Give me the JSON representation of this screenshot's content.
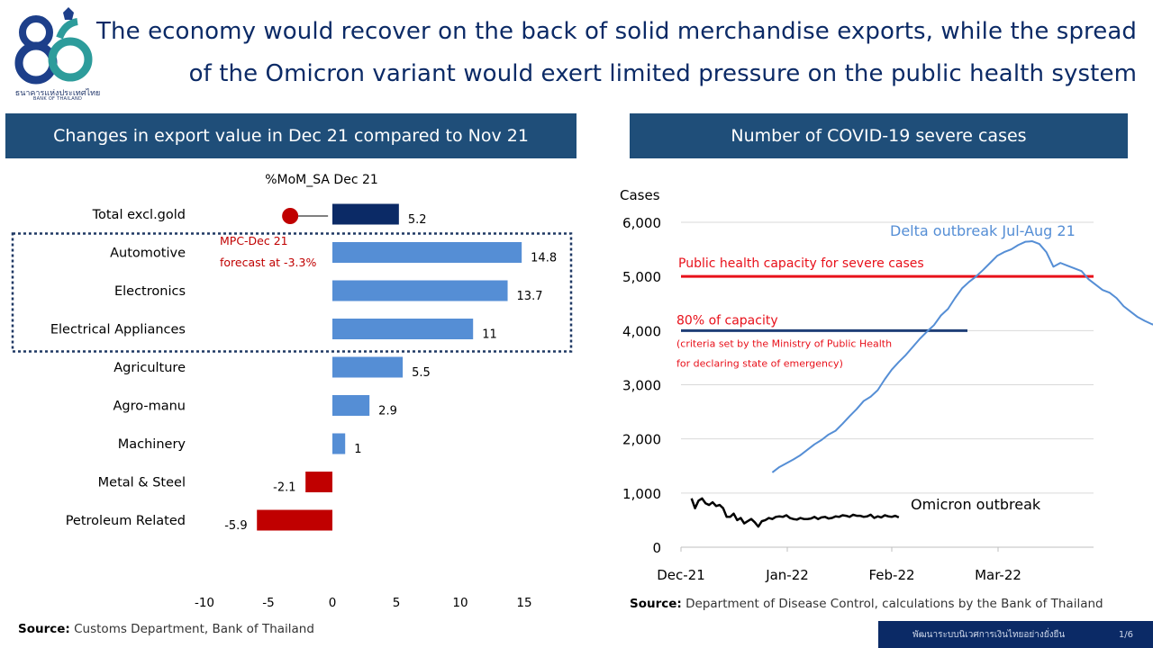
{
  "logo": {
    "thai_text": "ธนาคารแห่งประเทศไทย",
    "english_text": "BANK OF THAILAND"
  },
  "title": {
    "line1": "The economy would recover on the back of solid merchandise exports, while the spread",
    "line2": "of the Omicron variant would exert limited pressure on the public health system"
  },
  "left_panel": {
    "header": "Changes in export value in Dec 21 compared to Nov 21",
    "source_label": "Source:",
    "source_text": "Customs Department, Bank of Thailand"
  },
  "right_panel": {
    "header": "Number of COVID-19 severe cases",
    "source_label": "Source:",
    "source_text": "Department of Disease Control, calculations by the Bank of Thailand"
  },
  "footer": {
    "text": "พัฒนาระบบนิเวศการเงินไทยอย่างยั่งยืน",
    "page": "1/6"
  },
  "colors": {
    "navy": "#0b2a66",
    "light_blue": "#558ed5",
    "red": "#c00000",
    "header_blue": "#1f4e79",
    "bright_red": "#e8101a",
    "dark_blue_line": "#1f3f77"
  },
  "chart_data": [
    {
      "type": "bar",
      "orientation": "horizontal",
      "subtitle": "%MoM_SA Dec 21",
      "categories": [
        "Total excl.gold",
        "Automotive",
        "Electronics",
        "Electrical Appliances",
        "Agriculture",
        "Agro-manu",
        "Machinery",
        "Metal & Steel",
        "Petroleum Related"
      ],
      "values": [
        5.2,
        14.8,
        13.7,
        11,
        5.5,
        2.9,
        1,
        -2.1,
        -5.9
      ],
      "value_labels": [
        "5.2",
        "14.8",
        "13.7",
        "11",
        "5.5",
        "2.9",
        "1",
        "-2.1",
        "-5.9"
      ],
      "xlim": [
        -10,
        15
      ],
      "xticks": [
        "-10",
        "-5",
        "0",
        "5",
        "10",
        "15"
      ],
      "xtick_values": [
        -10,
        -5,
        0,
        5,
        10,
        15
      ],
      "forecast_marker": {
        "category": "Total excl.gold",
        "value": -3.3,
        "label_line1": "MPC-Dec 21",
        "label_line2": "forecast at -3.3%"
      },
      "highlight_group": [
        "Automotive",
        "Electronics",
        "Electrical Appliances"
      ],
      "grid": false
    },
    {
      "type": "line",
      "ylabel": "Cases",
      "ylim": [
        0,
        6000
      ],
      "yticks": [
        "0",
        "1,000",
        "2,000",
        "3,000",
        "4,000",
        "5,000",
        "6,000"
      ],
      "ytick_values": [
        0,
        1000,
        2000,
        3000,
        4000,
        5000,
        6000
      ],
      "xticks": [
        "Dec-21",
        "Jan-22",
        "Feb-22",
        "Mar-22"
      ],
      "grid": true,
      "reference_lines": [
        {
          "name": "Public health capacity for severe cases",
          "value": 5000
        },
        {
          "name": "80% of capacity",
          "value": 4000,
          "note_line1": "(criteria set by the Ministry of Public Health",
          "note_line2": "for declaring state of emergency)"
        }
      ],
      "series": [
        {
          "name": "Delta outbreak Jul-Aug 21",
          "x": [
            26,
            28,
            30,
            32,
            34,
            36,
            38,
            40,
            42,
            44,
            46,
            48,
            50,
            52,
            54,
            56,
            58,
            60,
            62,
            64,
            66,
            68,
            70,
            72,
            74,
            76,
            78,
            80,
            82,
            84,
            86,
            88,
            90,
            92,
            94,
            96,
            98,
            100,
            102,
            104,
            106,
            108,
            110,
            112,
            114,
            116,
            118,
            120,
            122,
            124,
            126,
            128,
            130,
            132,
            134,
            136,
            138,
            140,
            142,
            144,
            146,
            148,
            150,
            152,
            154
          ],
          "y": [
            1380,
            1480,
            1550,
            1620,
            1700,
            1800,
            1900,
            1980,
            2080,
            2150,
            2280,
            2420,
            2550,
            2700,
            2780,
            2900,
            3100,
            3280,
            3420,
            3550,
            3700,
            3850,
            3980,
            4100,
            4280,
            4400,
            4600,
            4780,
            4900,
            5000,
            5120,
            5250,
            5380,
            5450,
            5500,
            5580,
            5640,
            5650,
            5600,
            5450,
            5180,
            5250,
            5200,
            5150,
            5100,
            4950,
            4850,
            4750,
            4700,
            4600,
            4450,
            4350,
            4250,
            4180,
            4120,
            4080,
            4050,
            4040,
            4030,
            4030,
            4030,
            4030,
            4030,
            4030,
            4030
          ]
        },
        {
          "name": "Omicron outbreak",
          "x": [
            3,
            4,
            5,
            6,
            7,
            8,
            9,
            10,
            11,
            12,
            13,
            14,
            15,
            16,
            17,
            18,
            19,
            20,
            21,
            22,
            23,
            24,
            25,
            26,
            27,
            28,
            29,
            30,
            31,
            32,
            33,
            34,
            35,
            36,
            37,
            38,
            39,
            40,
            41,
            42,
            43,
            44,
            45,
            46,
            47,
            48,
            49,
            50,
            51,
            52,
            53,
            54,
            55,
            56,
            57,
            58,
            59,
            60,
            61,
            62
          ],
          "y": [
            900,
            720,
            860,
            900,
            810,
            780,
            830,
            760,
            780,
            720,
            560,
            560,
            620,
            500,
            540,
            440,
            480,
            520,
            460,
            380,
            480,
            500,
            540,
            520,
            560,
            570,
            560,
            590,
            540,
            520,
            510,
            540,
            520,
            520,
            530,
            560,
            520,
            550,
            560,
            530,
            540,
            570,
            560,
            590,
            580,
            560,
            600,
            580,
            580,
            560,
            570,
            600,
            540,
            570,
            550,
            590,
            570,
            560,
            580,
            550
          ]
        }
      ]
    }
  ]
}
